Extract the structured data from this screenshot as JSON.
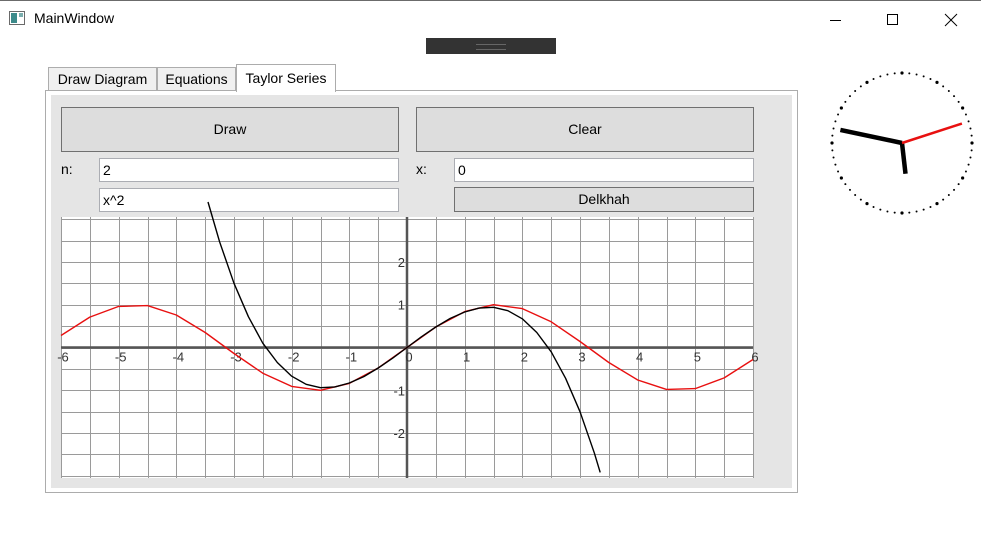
{
  "window": {
    "title": "MainWindow",
    "app_icon": "window-app-icon",
    "controls": [
      "minimize-icon",
      "maximize-icon",
      "close-icon"
    ]
  },
  "tabs": [
    {
      "label": "Draw Diagram",
      "active": false
    },
    {
      "label": "Equations",
      "active": false
    },
    {
      "label": "Taylor Series",
      "active": true
    }
  ],
  "panel": {
    "draw_button": "Draw",
    "clear_button": "Clear",
    "n_label": "n:",
    "n_value": "2",
    "x_label": "x:",
    "x_value": "0",
    "expression_value": "x^2",
    "delkhah_button": "Delkhah"
  },
  "clock": {
    "hour_hand": 5,
    "minute_hand": 47,
    "second_hand": 12
  },
  "chart_data": {
    "type": "line",
    "xlim": [
      -6,
      6
    ],
    "ylim": [
      -3.05,
      3.05
    ],
    "grid": true,
    "x_ticks": [
      -6,
      -5,
      -4,
      -3,
      -2,
      -1,
      0,
      1,
      2,
      3,
      4,
      5,
      6
    ],
    "y_ticks": [
      2,
      1,
      -1,
      -2
    ],
    "x_tick_labels": [
      "-6",
      "-5",
      "-4",
      "-3",
      "-2",
      "-1",
      "0",
      "1",
      "2",
      "3",
      "4",
      "5",
      "6"
    ],
    "y_tick_labels": [
      "2",
      "1",
      "-1",
      "-2"
    ],
    "series": [
      {
        "color": "#e81010",
        "x": [
          -6,
          -5.5,
          -5,
          -4.5,
          -4,
          -3.5,
          -3,
          -2.5,
          -2,
          -1.5,
          -1,
          -0.5,
          0,
          0.5,
          1,
          1.5,
          2,
          2.5,
          3,
          3.5,
          4,
          4.5,
          5,
          5.5,
          6
        ],
        "values": [
          0.28,
          0.71,
          0.96,
          0.98,
          0.76,
          0.35,
          -0.14,
          -0.6,
          -0.91,
          -1.0,
          -0.84,
          -0.48,
          0,
          0.48,
          0.84,
          1.0,
          0.91,
          0.6,
          0.14,
          -0.35,
          -0.76,
          -0.98,
          -0.96,
          -0.71,
          -0.28
        ]
      },
      {
        "color": "#000000",
        "x": [
          -3.45,
          -3.25,
          -3,
          -2.75,
          -2.5,
          -2.25,
          -2,
          -1.75,
          -1.5,
          -1.25,
          -1,
          -0.75,
          -0.5,
          -0.25,
          0,
          0.25,
          0.5,
          0.75,
          1,
          1.25,
          1.5,
          1.75,
          2,
          2.25,
          2.5,
          2.75,
          3,
          3.25,
          3.35
        ],
        "values": [
          3.4,
          2.47,
          1.5,
          0.72,
          0.1,
          -0.35,
          -0.67,
          -0.86,
          -0.94,
          -0.92,
          -0.83,
          -0.68,
          -0.48,
          -0.25,
          0,
          0.25,
          0.48,
          0.68,
          0.83,
          0.92,
          0.94,
          0.86,
          0.67,
          0.35,
          -0.1,
          -0.72,
          -1.5,
          -2.47,
          -2.92
        ]
      }
    ]
  }
}
